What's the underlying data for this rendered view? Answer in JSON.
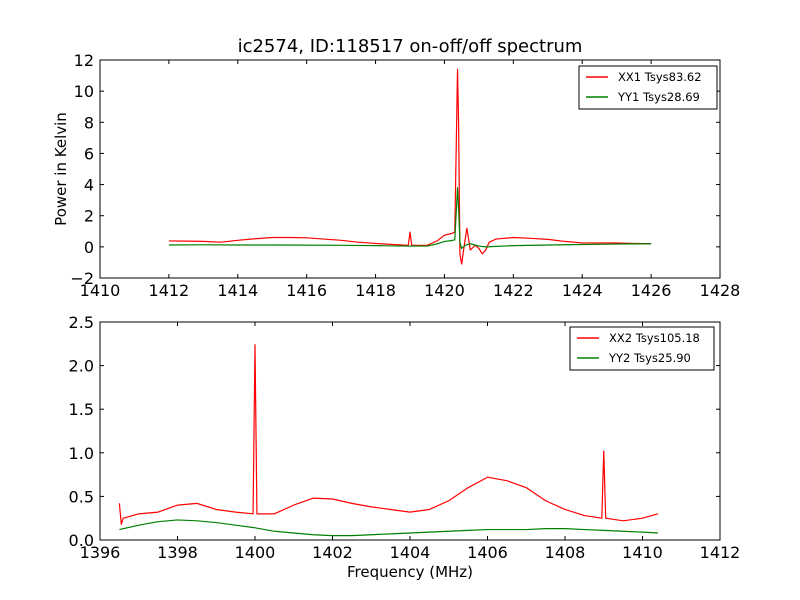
{
  "title": "ic2574, ID:118517 on-off/off spectrum",
  "colors": {
    "xx": "#ff0000",
    "yy": "#008000",
    "axes": "#000000",
    "background": "#ffffff"
  },
  "chart_data": [
    {
      "type": "line",
      "title": "ic2574, ID:118517 on-off/off spectrum",
      "xlabel": "",
      "ylabel": "Power in Kelvin",
      "xlim": [
        1410,
        1428
      ],
      "ylim": [
        -2,
        12
      ],
      "xticks": [
        1410,
        1412,
        1414,
        1416,
        1418,
        1420,
        1422,
        1424,
        1426,
        1428
      ],
      "yticks": [
        -2,
        0,
        2,
        4,
        6,
        8,
        10,
        12
      ],
      "xtick_labels": [
        "1410",
        "1412",
        "1414",
        "1416",
        "1418",
        "1420",
        "1422",
        "1424",
        "1426",
        "1428"
      ],
      "ytick_labels": [
        "−2",
        "0",
        "2",
        "4",
        "6",
        "8",
        "10",
        "12"
      ],
      "grid": false,
      "legend": "upper right",
      "series": [
        {
          "name": "XX1 Tsys83.62",
          "color": "#ff0000",
          "x": [
            1412.0,
            1412.5,
            1413.0,
            1413.5,
            1414.0,
            1414.5,
            1415.0,
            1415.5,
            1416.0,
            1416.5,
            1417.0,
            1417.5,
            1418.0,
            1418.5,
            1418.95,
            1419.0,
            1419.05,
            1419.5,
            1419.8,
            1420.0,
            1420.2,
            1420.3,
            1420.38,
            1420.41,
            1420.45,
            1420.5,
            1420.55,
            1420.65,
            1420.75,
            1420.9,
            1421.0,
            1421.1,
            1421.2,
            1421.3,
            1421.5,
            1422.0,
            1422.5,
            1423.0,
            1423.5,
            1424.0,
            1424.5,
            1425.0,
            1425.5,
            1426.0
          ],
          "y": [
            0.38,
            0.37,
            0.35,
            0.3,
            0.42,
            0.52,
            0.6,
            0.6,
            0.58,
            0.5,
            0.42,
            0.3,
            0.22,
            0.15,
            0.1,
            0.95,
            0.1,
            0.1,
            0.4,
            0.75,
            0.85,
            0.95,
            11.4,
            8.0,
            -0.5,
            -1.1,
            -0.3,
            1.2,
            -0.2,
            0.1,
            -0.1,
            -0.45,
            -0.2,
            0.3,
            0.5,
            0.6,
            0.55,
            0.48,
            0.35,
            0.25,
            0.25,
            0.25,
            0.22,
            0.2
          ]
        },
        {
          "name": "YY1 Tsys28.69",
          "color": "#008000",
          "x": [
            1412.0,
            1413.0,
            1414.0,
            1415.0,
            1416.0,
            1417.0,
            1418.0,
            1418.5,
            1419.0,
            1419.5,
            1419.8,
            1420.0,
            1420.2,
            1420.3,
            1420.38,
            1420.41,
            1420.45,
            1420.5,
            1420.6,
            1420.75,
            1421.0,
            1421.2,
            1422.0,
            1423.0,
            1424.0,
            1425.0,
            1426.0
          ],
          "y": [
            0.12,
            0.13,
            0.12,
            0.12,
            0.11,
            0.1,
            0.08,
            0.06,
            0.05,
            0.05,
            0.2,
            0.35,
            0.4,
            0.45,
            3.8,
            2.5,
            0.3,
            -0.1,
            0.1,
            0.2,
            0.05,
            0.0,
            0.08,
            0.12,
            0.15,
            0.18,
            0.2
          ]
        }
      ]
    },
    {
      "type": "line",
      "title": "",
      "xlabel": "Frequency (MHz)",
      "ylabel": "",
      "xlim": [
        1396,
        1412
      ],
      "ylim": [
        0,
        2.5
      ],
      "xticks": [
        1396,
        1398,
        1400,
        1402,
        1404,
        1406,
        1408,
        1410,
        1412
      ],
      "yticks": [
        0.0,
        0.5,
        1.0,
        1.5,
        2.0,
        2.5
      ],
      "xtick_labels": [
        "1396",
        "1398",
        "1400",
        "1402",
        "1404",
        "1406",
        "1408",
        "1410",
        "1412"
      ],
      "ytick_labels": [
        "0.0",
        "0.5",
        "1.0",
        "1.5",
        "2.0",
        "2.5"
      ],
      "grid": false,
      "legend": "upper right",
      "series": [
        {
          "name": "XX2 Tsys105.18",
          "color": "#ff0000",
          "x": [
            1396.5,
            1396.55,
            1396.6,
            1397.0,
            1397.5,
            1398.0,
            1398.5,
            1399.0,
            1399.5,
            1399.95,
            1400.0,
            1400.05,
            1400.5,
            1401.0,
            1401.5,
            1402.0,
            1402.5,
            1403.0,
            1403.5,
            1404.0,
            1404.5,
            1405.0,
            1405.5,
            1406.0,
            1406.5,
            1407.0,
            1407.5,
            1408.0,
            1408.5,
            1408.95,
            1409.0,
            1409.05,
            1409.5,
            1410.0,
            1410.4
          ],
          "y": [
            0.42,
            0.18,
            0.25,
            0.3,
            0.32,
            0.4,
            0.42,
            0.35,
            0.32,
            0.3,
            2.24,
            0.3,
            0.3,
            0.4,
            0.48,
            0.47,
            0.42,
            0.38,
            0.35,
            0.32,
            0.35,
            0.45,
            0.6,
            0.72,
            0.68,
            0.6,
            0.45,
            0.35,
            0.28,
            0.25,
            1.02,
            0.25,
            0.22,
            0.25,
            0.3
          ]
        },
        {
          "name": "YY2 Tsys25.90",
          "color": "#008000",
          "x": [
            1396.5,
            1397.0,
            1397.5,
            1398.0,
            1398.5,
            1399.0,
            1399.5,
            1400.0,
            1400.5,
            1401.0,
            1401.5,
            1402.0,
            1402.5,
            1403.0,
            1403.5,
            1404.0,
            1404.5,
            1405.0,
            1405.5,
            1406.0,
            1406.5,
            1407.0,
            1407.5,
            1408.0,
            1408.5,
            1409.0,
            1409.5,
            1410.0,
            1410.4
          ],
          "y": [
            0.12,
            0.17,
            0.21,
            0.23,
            0.22,
            0.2,
            0.17,
            0.14,
            0.1,
            0.08,
            0.06,
            0.05,
            0.05,
            0.06,
            0.07,
            0.08,
            0.09,
            0.1,
            0.11,
            0.12,
            0.12,
            0.12,
            0.13,
            0.13,
            0.12,
            0.11,
            0.1,
            0.09,
            0.08
          ]
        }
      ]
    }
  ]
}
